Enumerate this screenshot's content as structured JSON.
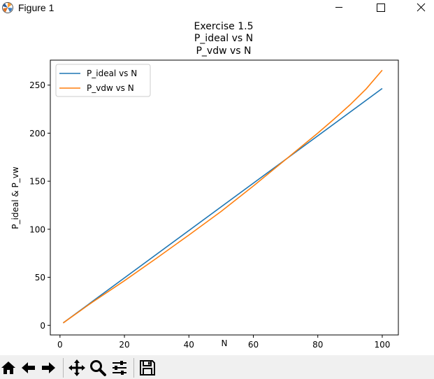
{
  "window": {
    "title": "Figure 1"
  },
  "toolbar": {
    "buttons": [
      "home-icon",
      "back-arrow-icon",
      "forward-arrow-icon",
      "pan-icon",
      "zoom-icon",
      "configure-subplots-icon",
      "save-icon"
    ]
  },
  "colors": {
    "series_1": "#1f77b4",
    "series_2": "#ff7f0e",
    "toolbar_bg": "#f0f0f0"
  },
  "chart_data": {
    "type": "line",
    "title": [
      "Exercise 1.5",
      "P_ideal vs N",
      "P_vdw vs N"
    ],
    "xlabel": "N",
    "ylabel": "P_ideal & P_vw",
    "xlim": [
      -3,
      105
    ],
    "ylim": [
      -10,
      276
    ],
    "xticks": [
      0,
      20,
      40,
      60,
      80,
      100
    ],
    "yticks": [
      0,
      50,
      100,
      150,
      200,
      250
    ],
    "grid": false,
    "legend": {
      "placement": "top-left",
      "entries": [
        "P_ideal vs N",
        "P_vdw vs N"
      ]
    },
    "series": [
      {
        "name": "P_ideal vs N",
        "x": [
          1,
          100
        ],
        "y": [
          2.5,
          246.5
        ]
      },
      {
        "name": "P_vdw vs N",
        "x": [
          1,
          10,
          20,
          30,
          40,
          50,
          60,
          70,
          80,
          85,
          90,
          95,
          100
        ],
        "y": [
          2.5,
          24,
          46.5,
          70,
          94,
          118.5,
          145,
          172.5,
          200,
          214.5,
          229.5,
          246,
          265.5
        ]
      }
    ]
  }
}
